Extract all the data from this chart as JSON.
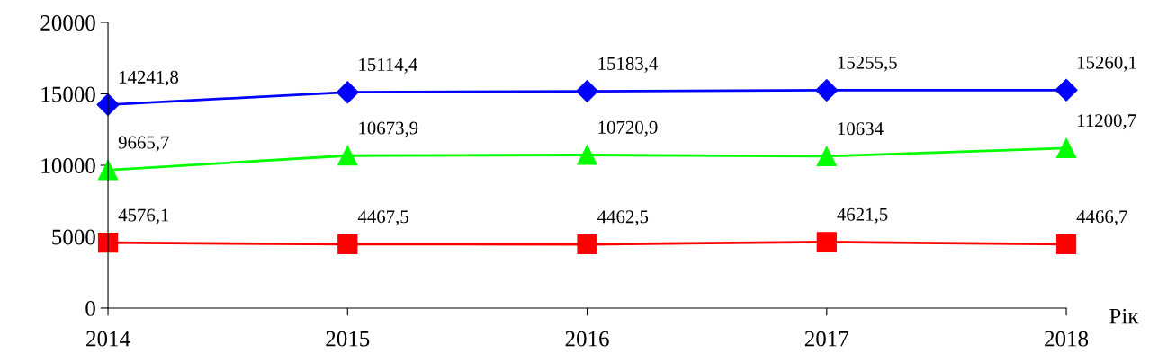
{
  "chart_data": {
    "type": "line",
    "xlabel": "Рік",
    "categories": [
      "2014",
      "2015",
      "2016",
      "2017",
      "2018"
    ],
    "ylim": [
      0,
      20000
    ],
    "yticks": [
      0,
      5000,
      10000,
      15000,
      20000
    ],
    "grid": false,
    "legend": false,
    "series": [
      {
        "color": "#0000ff",
        "marker": "diamond",
        "values": [
          14241.8,
          15114.4,
          15183.4,
          15255.5,
          15260.1
        ],
        "value_labels": [
          "14241,8",
          "15114,4",
          "15183,4",
          "15255,5",
          "15260,1"
        ]
      },
      {
        "color": "#00ff00",
        "marker": "triangle",
        "values": [
          9665.7,
          10673.9,
          10720.9,
          10634,
          11200.7
        ],
        "value_labels": [
          "9665,7",
          "10673,9",
          "10720,9",
          "10634",
          "11200,7"
        ]
      },
      {
        "color": "#ff0000",
        "marker": "square",
        "values": [
          4576.1,
          4467.5,
          4462.5,
          4621.5,
          4466.7
        ],
        "value_labels": [
          "4576,1",
          "4467,5",
          "4462,5",
          "4621,5",
          "4466,7"
        ]
      }
    ]
  }
}
